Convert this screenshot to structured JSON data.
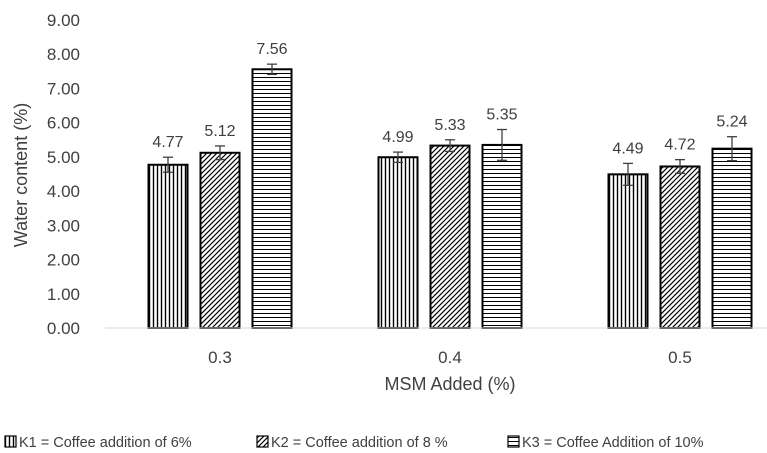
{
  "chart_data": {
    "type": "bar",
    "categories": [
      "0.3",
      "0.4",
      "0.5"
    ],
    "series": [
      {
        "name": "K1 =  Coffee addition of  6%",
        "values": [
          4.77,
          4.99,
          4.49
        ],
        "errors": [
          0.22,
          0.15,
          0.32
        ],
        "pattern": "vertical"
      },
      {
        "name": "K2 =  Coffee  addition of  8 %",
        "values": [
          5.12,
          5.33,
          4.72
        ],
        "errors": [
          0.2,
          0.17,
          0.2
        ],
        "pattern": "diagonal"
      },
      {
        "name": "K3 =  Coffee Addition of 10%",
        "values": [
          7.56,
          5.35,
          5.24
        ],
        "errors": [
          0.15,
          0.45,
          0.35
        ],
        "pattern": "horizontal"
      }
    ],
    "data_labels": [
      [
        "4.77",
        "5.12",
        "7.56"
      ],
      [
        "4.99",
        "5.33",
        "5.35"
      ],
      [
        "4.49",
        "4.72",
        "5.24"
      ]
    ],
    "xlabel": "MSM Added (%)",
    "ylabel": "Water content  (%)",
    "ylim": [
      0,
      9
    ],
    "yticks": [
      "0.00",
      "1.00",
      "2.00",
      "3.00",
      "4.00",
      "5.00",
      "6.00",
      "7.00",
      "8.00",
      "9.00"
    ],
    "grid": false,
    "legend_position": "bottom",
    "colors": {
      "bar_stroke": "#000000",
      "text": "#404040",
      "axis": "#d9d9d9",
      "error_bar": "#404040"
    }
  }
}
